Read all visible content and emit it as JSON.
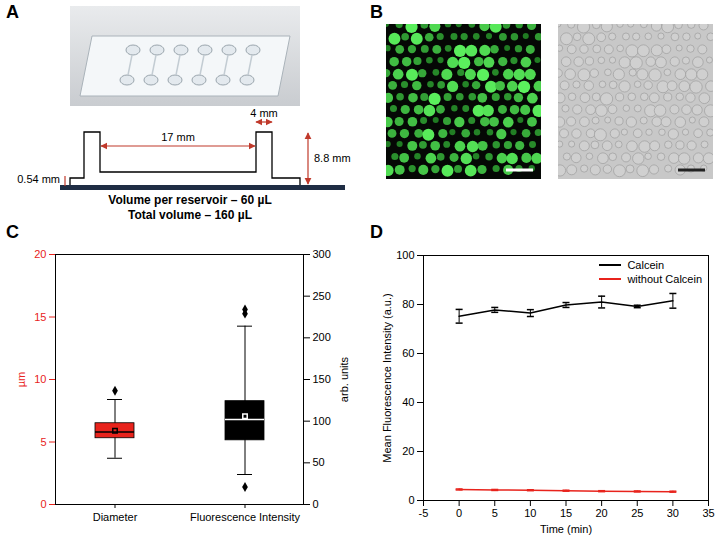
{
  "panel_labels": [
    "A",
    "B",
    "C",
    "D"
  ],
  "diagram": {
    "dimensions": {
      "length": "17 mm",
      "reservoir_width": "4 mm",
      "channel_height": "0.54 mm",
      "reservoir_height": "8.8 mm"
    },
    "notes": [
      "Volume per reservoir – 60 µL",
      "Total volume – 160 µL"
    ]
  },
  "chart_data": [
    {
      "type": "box",
      "categories": [
        "Diameter",
        "Fluorescence Intensity"
      ],
      "ylabel": "µm",
      "y2label": "arb. units",
      "ylim": [
        0,
        20
      ],
      "yticks": [
        0,
        5,
        10,
        15,
        20
      ],
      "y2lim": [
        0,
        300
      ],
      "y2ticks": [
        0,
        50,
        100,
        150,
        200,
        250,
        300
      ],
      "series": [
        {
          "name": "Diameter",
          "color": "#e8231c",
          "axis": "y",
          "whisker_low": 3.7,
          "q1": 5.3,
          "median": 5.8,
          "q3": 6.5,
          "whisker_high": 8.4,
          "mean": 5.9,
          "outliers": [
            9.1
          ]
        },
        {
          "name": "Fluorescence Intensity",
          "color": "#000000",
          "axis": "y2",
          "whisker_low": 36,
          "q1": 77,
          "median": 102,
          "q3": 124,
          "whisker_high": 214,
          "mean": 106,
          "outliers": [
            21,
            229,
            234
          ]
        }
      ]
    },
    {
      "type": "line",
      "xlabel": "Time (min)",
      "ylabel": "Mean Fluorescence Intensity (a.u.)",
      "x": [
        0,
        5,
        10,
        15,
        20,
        25,
        30
      ],
      "xlim": [
        -5,
        35
      ],
      "xticks": [
        -5,
        0,
        5,
        10,
        15,
        20,
        25,
        30,
        35
      ],
      "ylim": [
        0,
        100
      ],
      "yticks": [
        0,
        20,
        40,
        60,
        80,
        100
      ],
      "legend": "upper right",
      "series": [
        {
          "name": "Calcein",
          "color": "#000000",
          "values": [
            75.2,
            77.8,
            76.5,
            79.8,
            81,
            79.2,
            81.5
          ],
          "errors": [
            2.8,
            1,
            1.4,
            1,
            2.4,
            0.5,
            3
          ]
        },
        {
          "name": "without Calcein",
          "color": "#e8231c",
          "values": [
            4.5,
            4.3,
            4.2,
            4.0,
            3.8,
            3.7,
            3.6
          ],
          "errors": [
            0.2,
            0.2,
            0.2,
            0.2,
            0.2,
            0.2,
            0.2
          ]
        }
      ]
    }
  ]
}
